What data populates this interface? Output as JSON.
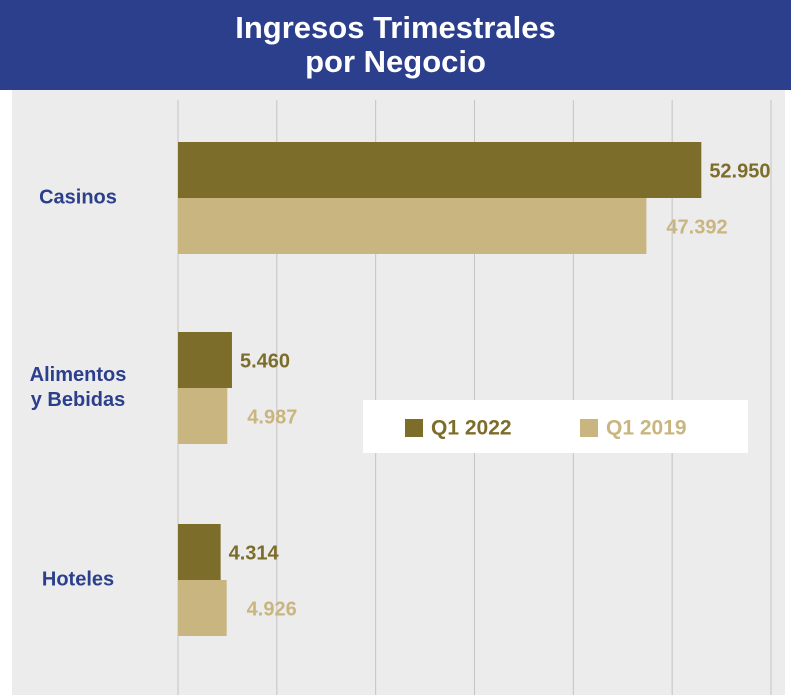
{
  "chart_data": {
    "type": "hbar",
    "title": "Ingresos Trimestrales\npor Negocio",
    "categories": [
      "Casinos",
      "Alimentos\ny Bebidas",
      "Hoteles"
    ],
    "series": [
      {
        "name": "Q1 2022",
        "color": "#7d6d2b",
        "values": [
          52950,
          5460,
          4314
        ],
        "value_labels": [
          "52.950",
          "5.460",
          "4.314"
        ]
      },
      {
        "name": "Q1 2019",
        "color": "#c9b57f",
        "values": [
          47392,
          4987,
          4926
        ],
        "value_labels": [
          "47.392",
          "4.987",
          "4.926"
        ]
      }
    ],
    "xlim": [
      0,
      60000
    ],
    "xticks": [
      0,
      10000,
      20000,
      30000,
      40000,
      50000,
      60000
    ],
    "grid": true
  }
}
